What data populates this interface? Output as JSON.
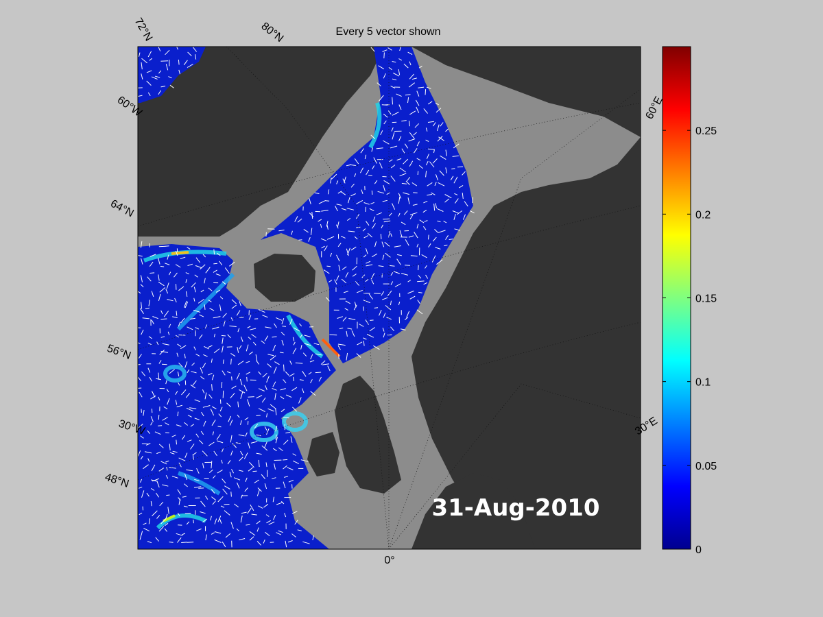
{
  "figure": {
    "title": "Every 5 vector shown",
    "date_label": "31-Aug-2010"
  },
  "map": {
    "region": "North Atlantic, Nordic Seas and North Sea",
    "land_color": "#333333",
    "ocean_masked_color": "#8c8c8c",
    "vector_color": "#ffffff",
    "latitude_labels": [
      "72°N",
      "64°N",
      "56°N",
      "48°N"
    ],
    "longitude_labels": [
      "60°W",
      "30°W",
      "0°",
      "30°E",
      "60°E"
    ],
    "meridian_top_label": "80°N"
  },
  "colorbar": {
    "colormap": "jet",
    "range": [
      0,
      0.3
    ],
    "ticks": [
      "0.25",
      "0.2",
      "0.15",
      "0.1",
      "0.05",
      "0"
    ],
    "tick_values": [
      0.25,
      0.2,
      0.15,
      0.1,
      0.05,
      0
    ]
  }
}
